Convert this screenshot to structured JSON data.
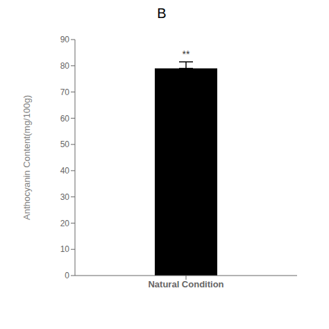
{
  "chart_data": {
    "type": "bar",
    "title": "B",
    "categories": [
      "Natural Condition"
    ],
    "values": [
      79
    ],
    "errors": [
      2.5
    ],
    "annotations": [
      "**"
    ],
    "color": "#000000",
    "ylabel": "Anthocyanin Content(mg/100g)",
    "ylim": [
      0,
      90
    ],
    "yticks": [
      0,
      10,
      20,
      30,
      40,
      50,
      60,
      70,
      80,
      90
    ],
    "grid": false
  }
}
